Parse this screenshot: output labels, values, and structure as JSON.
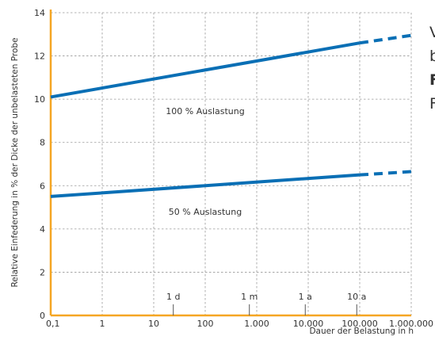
{
  "chart_data": {
    "type": "line",
    "xscale": "log",
    "x_tick_values": [
      0.1,
      1,
      10,
      100,
      1000,
      10000,
      100000,
      1000000
    ],
    "x_tick_labels": [
      "0,1",
      "1",
      "10",
      "100",
      "1.000",
      "10.000",
      "100.000",
      "1.000.000"
    ],
    "xlim": [
      0.1,
      1000000
    ],
    "y_ticks": [
      0,
      2,
      4,
      6,
      8,
      10,
      12,
      14
    ],
    "ylim": [
      0,
      14
    ],
    "ylabel": "Relative Einfederung in % der Dicke der unbelasteten Probe",
    "xlabel": "Dauer der Belastung in h",
    "grid": true,
    "series": [
      {
        "name": "100 % Auslastung",
        "color": "#0a6fb5",
        "x": [
          0.1,
          100000
        ],
        "y": [
          10.1,
          12.6
        ],
        "extrapolated_x": [
          100000,
          1000000
        ],
        "extrapolated_y": [
          12.6,
          12.95
        ]
      },
      {
        "name": "50 % Auslastung",
        "color": "#0a6fb5",
        "x": [
          0.1,
          100000
        ],
        "y": [
          5.5,
          6.5
        ],
        "extrapolated_x": [
          100000,
          1000000
        ],
        "extrapolated_y": [
          6.5,
          6.65
        ]
      }
    ],
    "annotations": [
      {
        "text": "1 d",
        "x": 24
      },
      {
        "text": "1 m",
        "x": 720
      },
      {
        "text": "1 a",
        "x": 8760
      },
      {
        "text": "10 a",
        "x": 87600
      }
    ],
    "label_positions": [
      {
        "series": "100 % Auslastung",
        "x": 100,
        "y": 9.3
      },
      {
        "series": "50 % Auslastung",
        "x": 100,
        "y": 4.65
      }
    ]
  },
  "side_text": [
    "V",
    "b",
    "F",
    "F"
  ]
}
